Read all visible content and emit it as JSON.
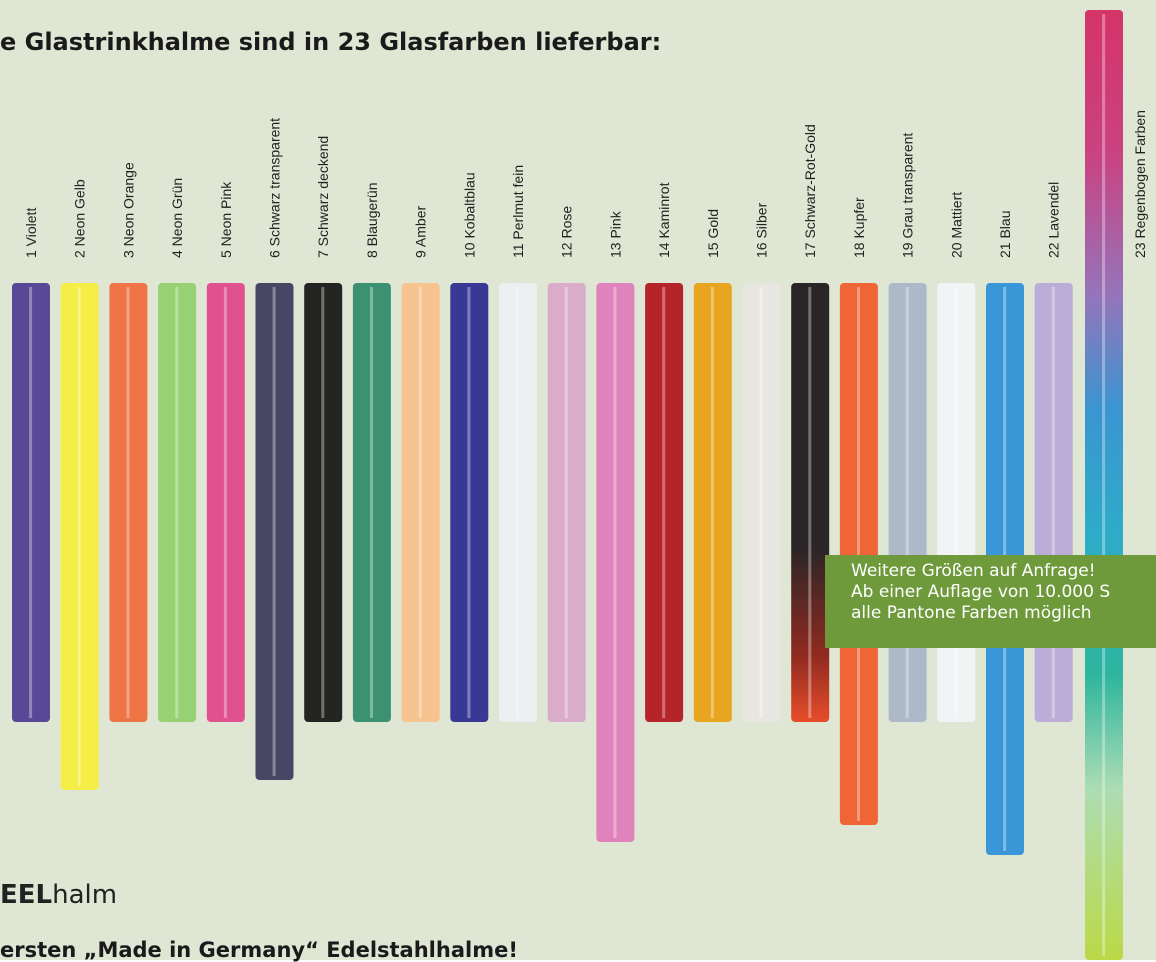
{
  "header": {
    "title": "e Glastrinkhalme sind in 23 Glasfarben lieferbar:"
  },
  "straws": [
    {
      "label": "1 Violett"
    },
    {
      "label": "2 Neon Gelb"
    },
    {
      "label": "3 Neon Orange"
    },
    {
      "label": "4 Neon Grün"
    },
    {
      "label": "5 Neon Pink"
    },
    {
      "label": "6 Schwarz transparent"
    },
    {
      "label": "7 Schwarz deckend"
    },
    {
      "label": "8 Blaugerün"
    },
    {
      "label": "9 Amber"
    },
    {
      "label": "10 Kobaltblau"
    },
    {
      "label": "11 Perlmut fein"
    },
    {
      "label": "12 Rose"
    },
    {
      "label": "13 Pink"
    },
    {
      "label": "14 Kaminrot"
    },
    {
      "label": "15 Gold"
    },
    {
      "label": "16 Silber"
    },
    {
      "label": "17 Schwarz-Rot-Gold"
    },
    {
      "label": "18 Kupfer"
    },
    {
      "label": "19 Grau transparent"
    },
    {
      "label": "20 Mattiert"
    },
    {
      "label": "21 Blau"
    },
    {
      "label": "22 Lavendel"
    },
    {
      "label": "23 Regenbogen Farben"
    }
  ],
  "note": {
    "lines": [
      "Weitere Größen auf Anfrage!",
      "Ab einer Auflage von 10.000 S",
      "alle Pantone Farben möglich"
    ]
  },
  "brand": {
    "bold": "EEL",
    "rest": "halm"
  },
  "footer": {
    "text": "ersten „Made in Germany“ Edelstahlhalme!"
  }
}
